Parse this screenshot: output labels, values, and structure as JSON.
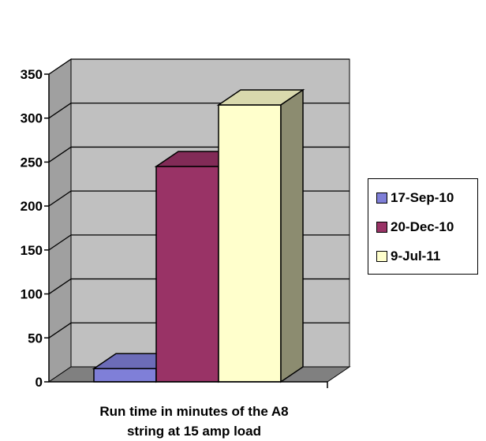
{
  "chart_data": {
    "type": "bar",
    "categories": [
      "Run time in minutes of the A8 string at 15 amp load"
    ],
    "xlabel_lines": [
      "Run time in minutes of the A8",
      "string at 15 amp load"
    ],
    "series": [
      {
        "name": "17-Sep-10",
        "values": [
          15
        ],
        "color": "#7f7fd8"
      },
      {
        "name": "20-Dec-10",
        "values": [
          245
        ],
        "color": "#993366"
      },
      {
        "name": "9-Jul-11",
        "values": [
          315
        ],
        "color": "#ffffcc"
      }
    ],
    "ylim": [
      0,
      350
    ],
    "yticks": [
      0,
      50,
      100,
      150,
      200,
      250,
      300,
      350
    ],
    "grid": true,
    "legend_position": "right",
    "three_d": true,
    "colors": {
      "wall": "#c0c0c0",
      "floor": "#808080",
      "grid": "#000000"
    }
  }
}
